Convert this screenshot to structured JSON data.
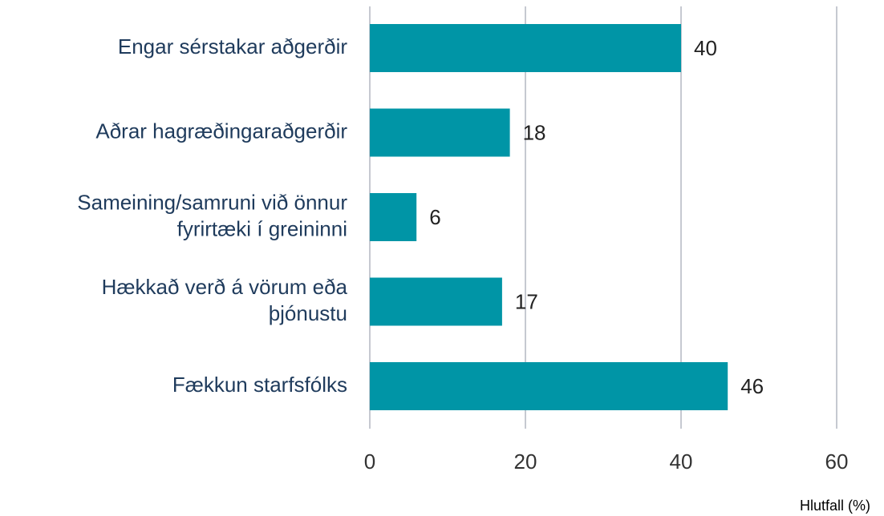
{
  "chart_data": {
    "type": "barh",
    "categories": [
      "Engar sérstakar aðgerðir",
      "Aðrar hagræðingaraðgerðir",
      "Sameining/samruni við önnur\nfyrirtæki í greininni",
      "Hækkað verð á vörum eða\nþjónustu",
      "Fækkun starfsfólks"
    ],
    "values": [
      40,
      18,
      6,
      17,
      46
    ],
    "color": "#0095a6",
    "xlim": [
      0,
      60
    ],
    "xticks": [
      0,
      20,
      40,
      60
    ],
    "grid": true,
    "xlabel": "Hlutfall (%)"
  }
}
